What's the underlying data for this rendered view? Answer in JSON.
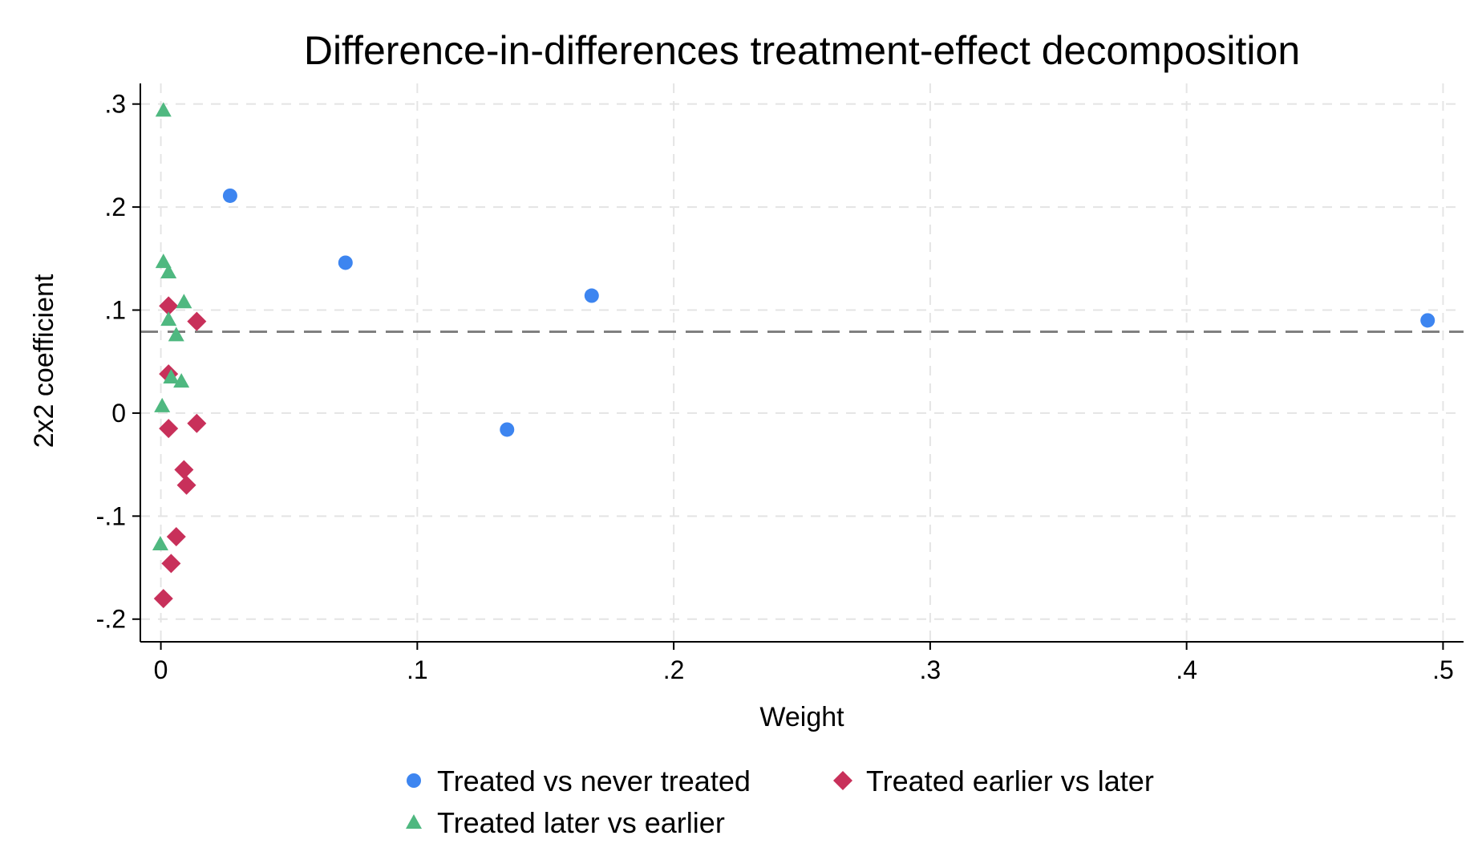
{
  "chart_data": {
    "type": "scatter",
    "title": "Difference-in-differences treatment-effect decomposition",
    "xlabel": "Weight",
    "ylabel": "2x2 coefficient",
    "xlim": [
      -0.008,
      0.508
    ],
    "ylim": [
      -0.222,
      0.32
    ],
    "x_ticks": [
      0,
      0.1,
      0.2,
      0.3,
      0.4,
      0.5
    ],
    "x_tick_labels": [
      "0",
      ".1",
      ".2",
      ".3",
      ".4",
      ".5"
    ],
    "y_ticks": [
      -0.2,
      -0.1,
      0,
      0.1,
      0.2,
      0.3
    ],
    "y_tick_labels": [
      "-.2",
      "-.1",
      "0",
      ".1",
      ".2",
      ".3"
    ],
    "grid": true,
    "legend_position": "bottom",
    "reference_line": {
      "y": 0.079,
      "color": "#808080",
      "style": "dashed"
    },
    "series": [
      {
        "name": "Treated vs never treated",
        "marker": "circle",
        "color": "#3d85f0",
        "x": [
          0.027,
          0.072,
          0.168,
          0.135,
          0.494
        ],
        "y": [
          0.211,
          0.146,
          0.114,
          -0.016,
          0.09
        ]
      },
      {
        "name": "Treated earlier vs later",
        "marker": "diamond",
        "color": "#c8305a",
        "x": [
          0.003,
          0.014,
          0.003,
          0.003,
          0.014,
          0.009,
          0.01,
          0.006,
          0.004,
          0.001
        ],
        "y": [
          0.104,
          0.089,
          0.038,
          -0.015,
          -0.01,
          -0.055,
          -0.07,
          -0.12,
          -0.146,
          -0.18
        ]
      },
      {
        "name": "Treated later vs earlier",
        "marker": "triangle",
        "color": "#4fb880",
        "x": [
          0.001,
          0.001,
          0.003,
          0.009,
          0.003,
          0.006,
          0.004,
          0.008,
          0.0005,
          -0.0002
        ],
        "y": [
          0.294,
          0.147,
          0.137,
          0.108,
          0.091,
          0.076,
          0.035,
          0.031,
          0.007,
          -0.127
        ]
      }
    ]
  }
}
